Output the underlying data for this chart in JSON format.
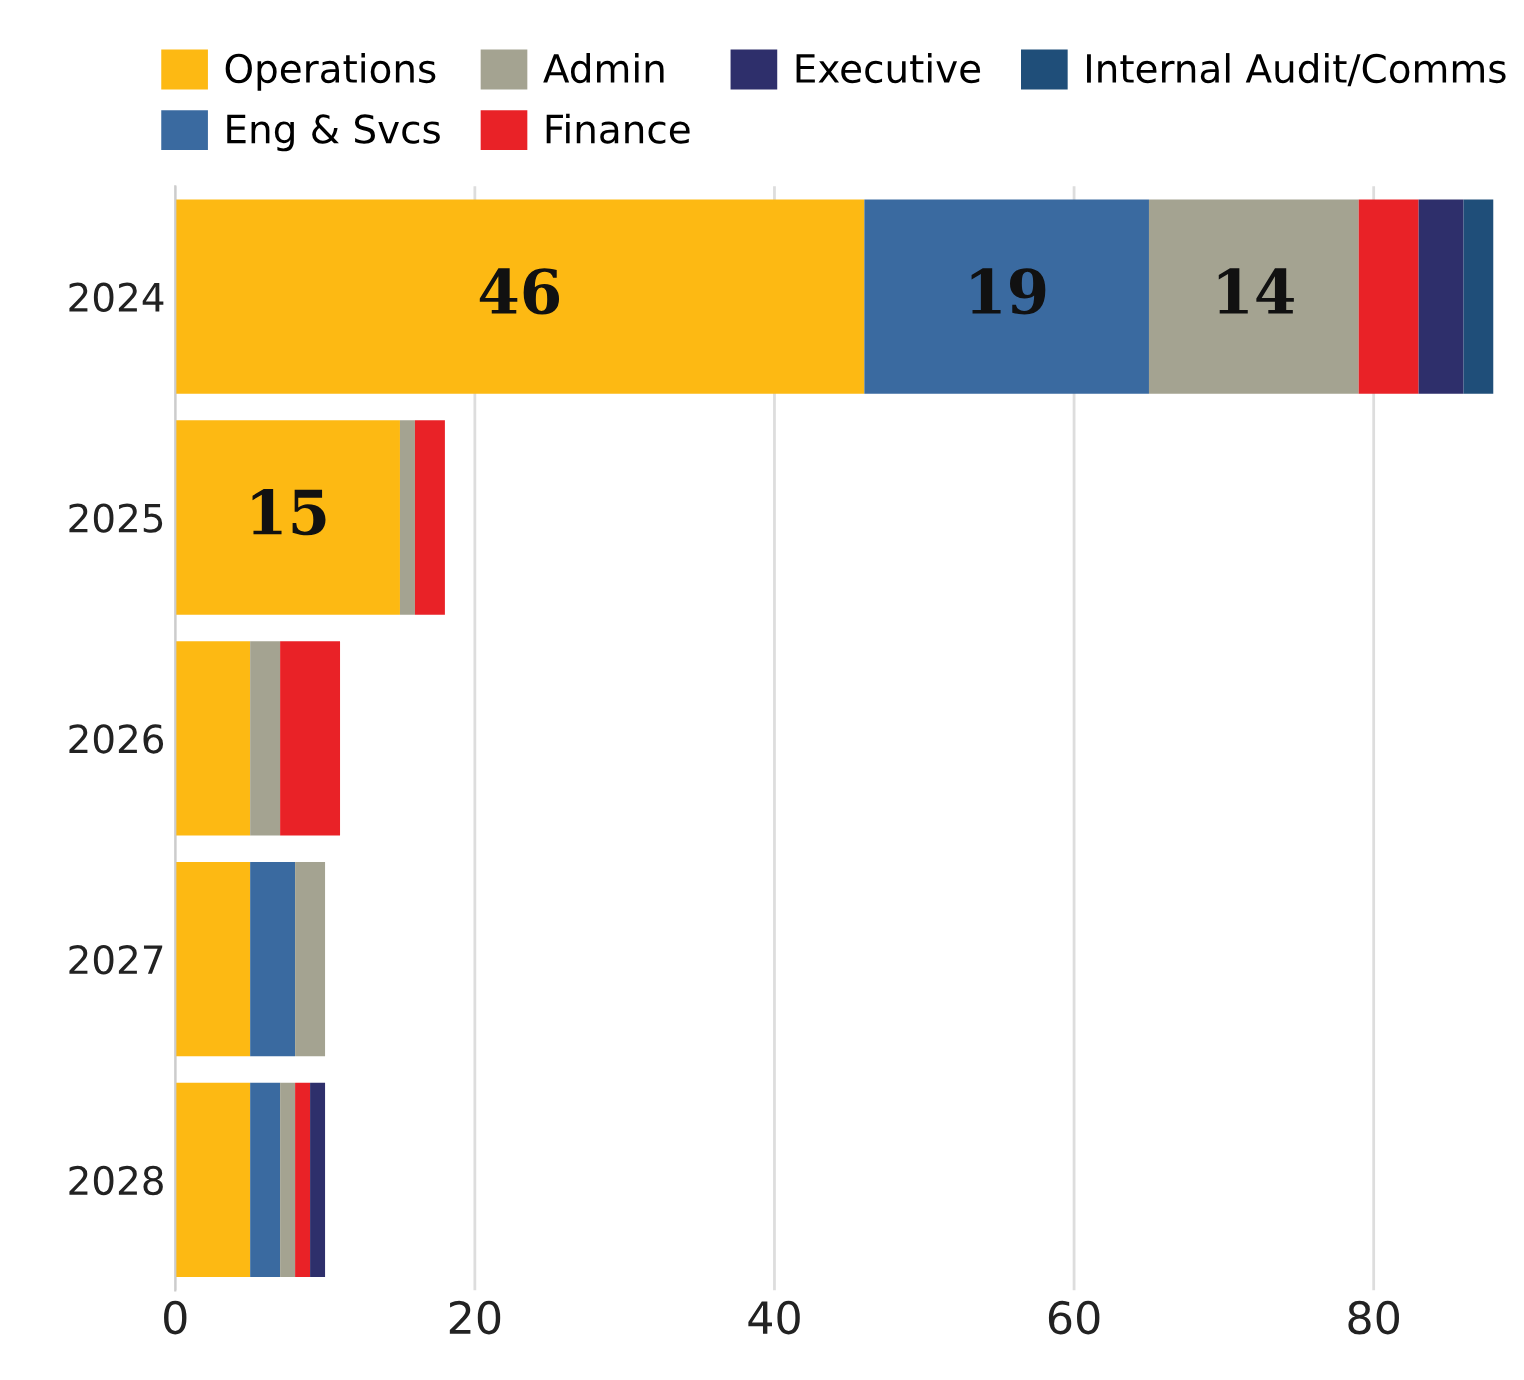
{
  "chart_data": {
    "type": "bar",
    "orientation": "horizontal",
    "stacked": true,
    "categories": [
      "2024",
      "2025",
      "2026",
      "2027",
      "2028"
    ],
    "series": [
      {
        "name": "Operations",
        "color": "#fdb913",
        "values": [
          46,
          15,
          5,
          5,
          5
        ],
        "value_labels": [
          "46",
          "15",
          null,
          null,
          null
        ]
      },
      {
        "name": "Eng & Svcs",
        "color": "#3a6aa0",
        "values": [
          19,
          0,
          0,
          3,
          2
        ],
        "value_labels": [
          "19",
          null,
          null,
          null,
          null
        ]
      },
      {
        "name": "Admin",
        "color": "#a4a391",
        "values": [
          14,
          1,
          2,
          2,
          1
        ],
        "value_labels": [
          "14",
          null,
          null,
          null,
          null
        ]
      },
      {
        "name": "Finance",
        "color": "#e92227",
        "values": [
          4,
          2,
          4,
          0,
          1
        ]
      },
      {
        "name": "Executive",
        "color": "#2e2f6b",
        "values": [
          3,
          0,
          0,
          0,
          1
        ]
      },
      {
        "name": "Internal Audit/Comms",
        "color": "#1f4e79",
        "values": [
          2,
          0,
          0,
          0,
          0
        ]
      }
    ],
    "xlim": [
      0,
      88
    ],
    "xticks": [
      0,
      20,
      40,
      60,
      80
    ],
    "grid": "x",
    "legend": "top"
  }
}
